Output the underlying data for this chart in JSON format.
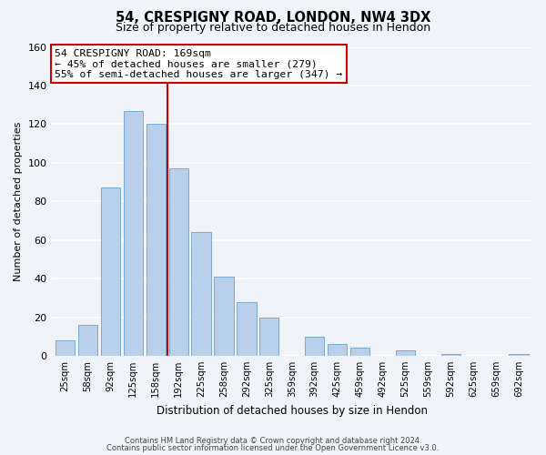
{
  "title": "54, CRESPIGNY ROAD, LONDON, NW4 3DX",
  "subtitle": "Size of property relative to detached houses in Hendon",
  "xlabel": "Distribution of detached houses by size in Hendon",
  "ylabel": "Number of detached properties",
  "bar_labels": [
    "25sqm",
    "58sqm",
    "92sqm",
    "125sqm",
    "158sqm",
    "192sqm",
    "225sqm",
    "258sqm",
    "292sqm",
    "325sqm",
    "359sqm",
    "392sqm",
    "425sqm",
    "459sqm",
    "492sqm",
    "525sqm",
    "559sqm",
    "592sqm",
    "625sqm",
    "659sqm",
    "692sqm"
  ],
  "bar_values": [
    8,
    16,
    87,
    127,
    120,
    97,
    64,
    41,
    28,
    20,
    0,
    10,
    6,
    4,
    0,
    3,
    0,
    1,
    0,
    0,
    1
  ],
  "bar_color": "#b8d0ea",
  "bar_edge_color": "#7aaad0",
  "vline_x": 4.5,
  "vline_color": "#cc0000",
  "annotation_text": "54 CRESPIGNY ROAD: 169sqm\n← 45% of detached houses are smaller (279)\n55% of semi-detached houses are larger (347) →",
  "annotation_box_color": "#ffffff",
  "annotation_box_edge": "#cc0000",
  "ylim": [
    0,
    160
  ],
  "yticks": [
    0,
    20,
    40,
    60,
    80,
    100,
    120,
    140,
    160
  ],
  "footer_line1": "Contains HM Land Registry data © Crown copyright and database right 2024.",
  "footer_line2": "Contains public sector information licensed under the Open Government Licence v3.0.",
  "bg_color": "#f0f4f8",
  "grid_color": "#dce8f0"
}
